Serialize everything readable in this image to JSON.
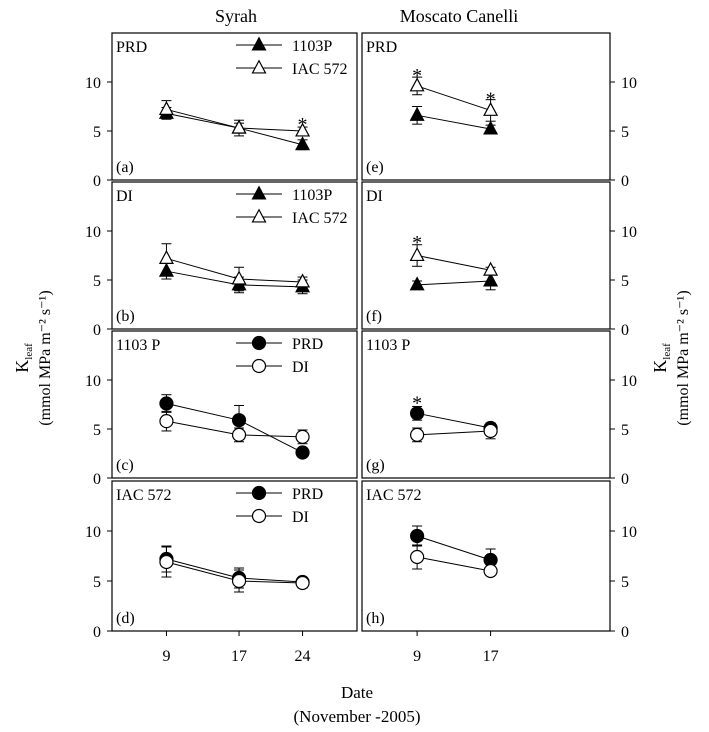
{
  "col_titles": [
    "Syrah",
    "Moscato Canelli"
  ],
  "left_ylabel": {
    "main": "K",
    "sub": "leaf",
    "unit": "(mmol MPa m⁻² s⁻¹)"
  },
  "right_ylabel": {
    "main": "K",
    "sub": "leaf",
    "unit": "(mmol MPa m⁻² s⁻¹)"
  },
  "xlabel": "Date",
  "xlabel_sub": "(November -2005)",
  "colors": {
    "axis": "#000000",
    "filled": "#000000",
    "open": "#ffffff"
  },
  "chart_data": [
    {
      "type": "line",
      "panel": "(a)",
      "label": "PRD",
      "x_ticks": [
        9,
        17,
        24
      ],
      "xlim": [
        3,
        30
      ],
      "ylim": [
        0,
        15
      ],
      "y_ticks": [
        0,
        5,
        10
      ],
      "legend": {
        "show": true,
        "marker": "triangle"
      },
      "series": [
        {
          "name": "1103P",
          "marker": "triangle",
          "fill": "filled",
          "x": [
            9,
            17,
            24
          ],
          "values": [
            6.8,
            5.3,
            3.6
          ],
          "err": [
            0.6,
            0.5,
            0.5
          ]
        },
        {
          "name": "IAC 572",
          "marker": "triangle",
          "fill": "open",
          "x": [
            9,
            17,
            24
          ],
          "values": [
            7.2,
            5.3,
            5.0
          ],
          "err": [
            0.9,
            0.8,
            0.4
          ]
        }
      ],
      "annotations": [
        {
          "text": "*",
          "x": 24,
          "y": 6.0
        }
      ]
    },
    {
      "type": "line",
      "panel": "(b)",
      "label": "DI",
      "x_ticks": [
        9,
        17,
        24
      ],
      "xlim": [
        3,
        30
      ],
      "ylim": [
        0,
        15
      ],
      "y_ticks": [
        0,
        5,
        10
      ],
      "legend": {
        "show": true,
        "marker": "triangle"
      },
      "series": [
        {
          "name": "1103P",
          "marker": "triangle",
          "fill": "filled",
          "x": [
            9,
            17,
            24
          ],
          "values": [
            5.9,
            4.5,
            4.3
          ],
          "err": [
            0.8,
            0.8,
            0.7
          ]
        },
        {
          "name": "IAC 572",
          "marker": "triangle",
          "fill": "open",
          "x": [
            9,
            17,
            24
          ],
          "values": [
            7.2,
            5.1,
            4.8
          ],
          "err": [
            1.5,
            1.2,
            0.5
          ]
        }
      ],
      "annotations": []
    },
    {
      "type": "line",
      "panel": "(c)",
      "label": "1103 P",
      "x_ticks": [
        9,
        17,
        24
      ],
      "xlim": [
        3,
        30
      ],
      "ylim": [
        0,
        15
      ],
      "y_ticks": [
        0,
        5,
        10
      ],
      "legend": {
        "show": true,
        "marker": "circle"
      },
      "series": [
        {
          "name": "PRD",
          "marker": "circle",
          "fill": "filled",
          "x": [
            9,
            17,
            24
          ],
          "values": [
            7.6,
            5.9,
            2.6
          ],
          "err": [
            0.9,
            1.5,
            0.3
          ]
        },
        {
          "name": "DI",
          "marker": "circle",
          "fill": "open",
          "x": [
            9,
            17,
            24
          ],
          "values": [
            5.8,
            4.4,
            4.2
          ],
          "err": [
            1.0,
            0.7,
            0.7
          ]
        }
      ],
      "annotations": []
    },
    {
      "type": "line",
      "panel": "(d)",
      "label": "IAC 572",
      "x_ticks": [
        9,
        17,
        24
      ],
      "xlim": [
        3,
        30
      ],
      "ylim": [
        0,
        15
      ],
      "y_ticks": [
        0,
        5,
        10
      ],
      "legend": {
        "show": true,
        "marker": "circle"
      },
      "series": [
        {
          "name": "PRD",
          "marker": "circle",
          "fill": "filled",
          "x": [
            9,
            17,
            24
          ],
          "values": [
            7.2,
            5.3,
            4.9
          ],
          "err": [
            1.3,
            1.0,
            0.4
          ]
        },
        {
          "name": "DI",
          "marker": "circle",
          "fill": "open",
          "x": [
            9,
            17,
            24
          ],
          "values": [
            6.9,
            5.0,
            4.8
          ],
          "err": [
            1.5,
            1.1,
            0.5
          ]
        }
      ],
      "annotations": []
    },
    {
      "type": "line",
      "panel": "(e)",
      "label": "PRD",
      "x_ticks": [
        9,
        17
      ],
      "xlim": [
        3,
        30
      ],
      "ylim": [
        0,
        15
      ],
      "y_ticks": [
        0,
        5,
        10
      ],
      "legend": {
        "show": false
      },
      "series": [
        {
          "name": "1103P",
          "marker": "triangle",
          "fill": "filled",
          "x": [
            9,
            17
          ],
          "values": [
            6.6,
            5.2
          ],
          "err": [
            0.9,
            0.4
          ]
        },
        {
          "name": "IAC 572",
          "marker": "triangle",
          "fill": "open",
          "x": [
            9,
            17
          ],
          "values": [
            9.6,
            7.1
          ],
          "err": [
            0.9,
            1.1
          ]
        }
      ],
      "annotations": [
        {
          "text": "*",
          "x": 9,
          "y": 11.0
        },
        {
          "text": "*",
          "x": 17,
          "y": 8.6
        }
      ]
    },
    {
      "type": "line",
      "panel": "(f)",
      "label": "DI",
      "x_ticks": [
        9,
        17
      ],
      "xlim": [
        3,
        30
      ],
      "ylim": [
        0,
        15
      ],
      "y_ticks": [
        0,
        5,
        10
      ],
      "legend": {
        "show": false
      },
      "series": [
        {
          "name": "1103P",
          "marker": "triangle",
          "fill": "filled",
          "x": [
            9,
            17
          ],
          "values": [
            4.5,
            4.9
          ],
          "err": [
            0.4,
            0.9
          ]
        },
        {
          "name": "IAC 572",
          "marker": "triangle",
          "fill": "open",
          "x": [
            9,
            17
          ],
          "values": [
            7.5,
            6.0
          ],
          "err": [
            1.1,
            0.3
          ]
        }
      ],
      "annotations": [
        {
          "text": "*",
          "x": 9,
          "y": 9.2
        }
      ]
    },
    {
      "type": "line",
      "panel": "(g)",
      "label": "1103 P",
      "x_ticks": [
        9,
        17
      ],
      "xlim": [
        3,
        30
      ],
      "ylim": [
        0,
        15
      ],
      "y_ticks": [
        0,
        5,
        10
      ],
      "legend": {
        "show": false
      },
      "series": [
        {
          "name": "PRD",
          "marker": "circle",
          "fill": "filled",
          "x": [
            9,
            17
          ],
          "values": [
            6.6,
            5.1
          ],
          "err": [
            0.7,
            0.5
          ]
        },
        {
          "name": "DI",
          "marker": "circle",
          "fill": "open",
          "x": [
            9,
            17
          ],
          "values": [
            4.4,
            4.8
          ],
          "err": [
            0.7,
            0.8
          ]
        }
      ],
      "annotations": [
        {
          "text": "*",
          "x": 9,
          "y": 8.0
        }
      ]
    },
    {
      "type": "line",
      "panel": "(h)",
      "label": "IAC 572",
      "x_ticks": [
        9,
        17
      ],
      "xlim": [
        3,
        30
      ],
      "ylim": [
        0,
        15
      ],
      "y_ticks": [
        0,
        5,
        10
      ],
      "legend": {
        "show": false
      },
      "series": [
        {
          "name": "PRD",
          "marker": "circle",
          "fill": "filled",
          "x": [
            9,
            17
          ],
          "values": [
            9.5,
            7.1
          ],
          "err": [
            1.0,
            1.1
          ]
        },
        {
          "name": "DI",
          "marker": "circle",
          "fill": "open",
          "x": [
            9,
            17
          ],
          "values": [
            7.4,
            6.0
          ],
          "err": [
            1.2,
            0.4
          ]
        }
      ],
      "annotations": []
    }
  ]
}
